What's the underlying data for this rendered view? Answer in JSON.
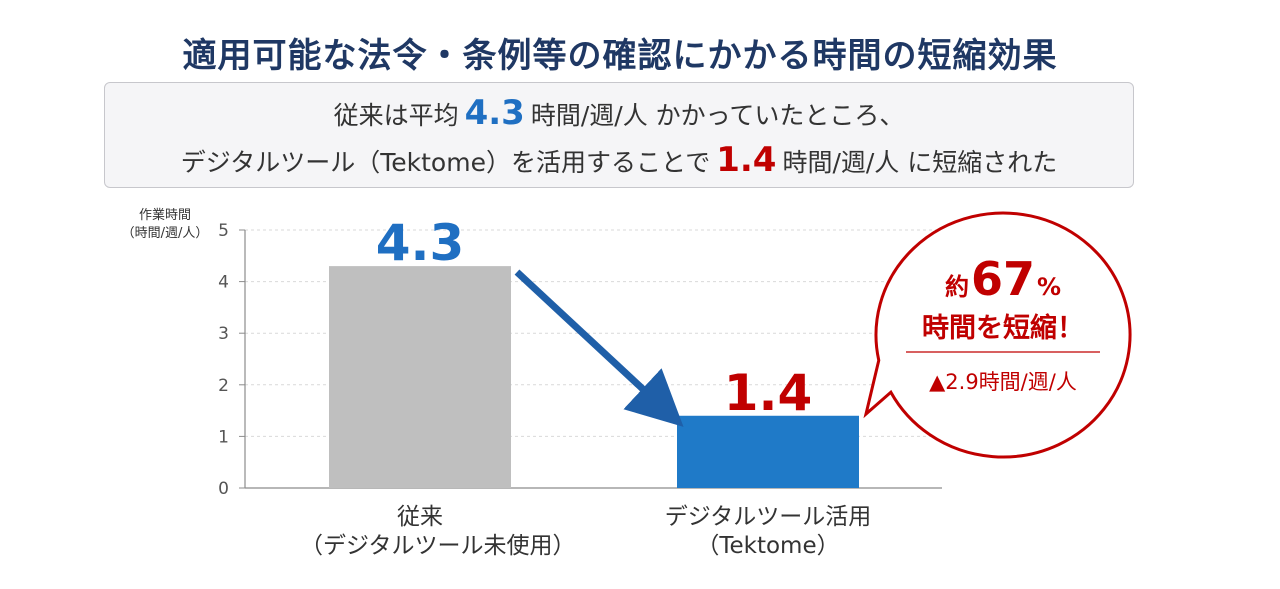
{
  "title": "適用可能な法令・条例等の確認にかかる時間の短縮効果",
  "summary": {
    "line1_pre": "従来は平均",
    "line1_value": "4.3",
    "line1_post": "時間/週/人 かかっていたところ、",
    "line2_pre": "デジタルツール（Tektome）を活用することで",
    "line2_value": "1.4",
    "line2_post": "時間/週/人 に短縮された"
  },
  "colors": {
    "title": "#1f3864",
    "before_bar": "#bfbfbf",
    "after_bar": "#1f7ac8",
    "arrow": "#1f5fa8",
    "before_label": "#1f6fc2",
    "after_label": "#c00000",
    "bubble": "#c00000"
  },
  "chart_data": {
    "type": "bar",
    "y_title_line1": "作業時間",
    "y_title_line2": "（時間/週/人）",
    "ylim": [
      0,
      5
    ],
    "yticks": [
      "0",
      "1",
      "2",
      "3",
      "4",
      "5"
    ],
    "categories": [
      {
        "line1": "従来",
        "line2": "（デジタルツール未使用）"
      },
      {
        "line1": "デジタルツール活用",
        "line2": "（Tektome）"
      }
    ],
    "values": [
      4.3,
      1.4
    ],
    "value_labels": [
      "4.3",
      "1.4"
    ],
    "callout": {
      "prefix": "約",
      "percent": "67",
      "percent_sign": "%",
      "line2": "時間を短縮！",
      "line3": "▲2.9時間/週/人"
    }
  }
}
